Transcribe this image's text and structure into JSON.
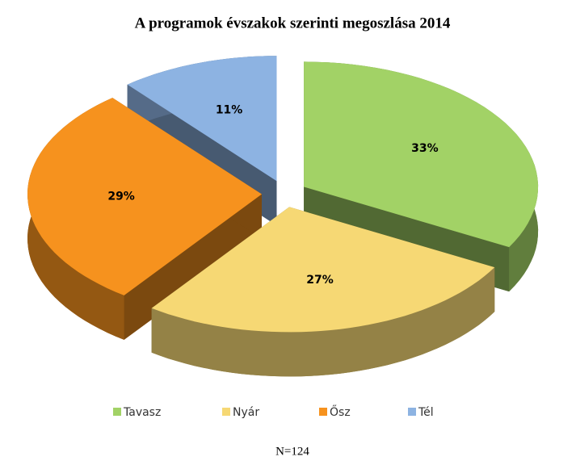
{
  "chart_data": {
    "type": "pie3d",
    "title": "A programok évszakok szerinti megoszlása 2014",
    "categories": [
      "Tavasz",
      "Nyár",
      "Ősz",
      "Tél"
    ],
    "values": [
      33,
      27,
      29,
      11
    ],
    "value_labels": [
      "33%",
      "27%",
      "29%",
      "11%"
    ],
    "colors": [
      "#a2d266",
      "#f6d874",
      "#f6921e",
      "#8db3e2"
    ],
    "legend": "bottom",
    "note": "N=124"
  }
}
